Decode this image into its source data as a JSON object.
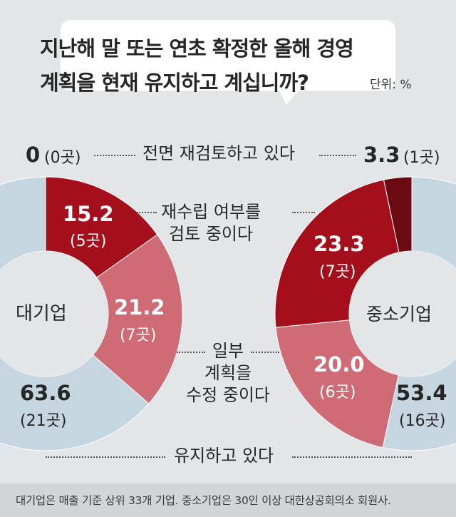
{
  "title_lines": [
    "지난해 말 또는 연초 확정한 올해 경영",
    "계획을 현재 유지하고 계십니까?"
  ],
  "unit": "단위: %",
  "footnote": "대기업은 매출 기준 상위 33개 기업. 중소기업은 30인 이상 대한상공회의소 회원사.",
  "colors": {
    "full_review": "#6b0a10",
    "reestablish": "#a50f1c",
    "partial_revision": "#cf6b74",
    "maintain": "#c5d6e0",
    "background": "#e3e6e8"
  },
  "chart_data": {
    "type": "pie",
    "categories": [
      "전면 재검토하고 있다",
      "재수립 여부를 검토 중이다",
      "일부 계획을 수정 중이다",
      "유지하고 있다"
    ],
    "category_labels": {
      "full_review": "전면 재검토하고 있다",
      "reestablish": [
        "재수립 여부를",
        "검토 중이다"
      ],
      "partial_revision": [
        "일부",
        "계획을",
        "수정 중이다"
      ],
      "maintain": "유지하고 있다"
    },
    "series": [
      {
        "name": "대기업",
        "values": [
          0,
          15.2,
          21.2,
          63.6
        ],
        "value_labels": [
          "0",
          "15.2",
          "21.2",
          "63.6"
        ],
        "counts": [
          "(0곳)",
          "(5곳)",
          "(7곳)",
          "(21곳)"
        ]
      },
      {
        "name": "중소기업",
        "values": [
          3.3,
          23.3,
          20.0,
          53.4
        ],
        "value_labels": [
          "3.3",
          "23.3",
          "20.0",
          "53.4"
        ],
        "counts": [
          "(1곳)",
          "(7곳)",
          "(6곳)",
          "(16곳)"
        ]
      }
    ]
  }
}
